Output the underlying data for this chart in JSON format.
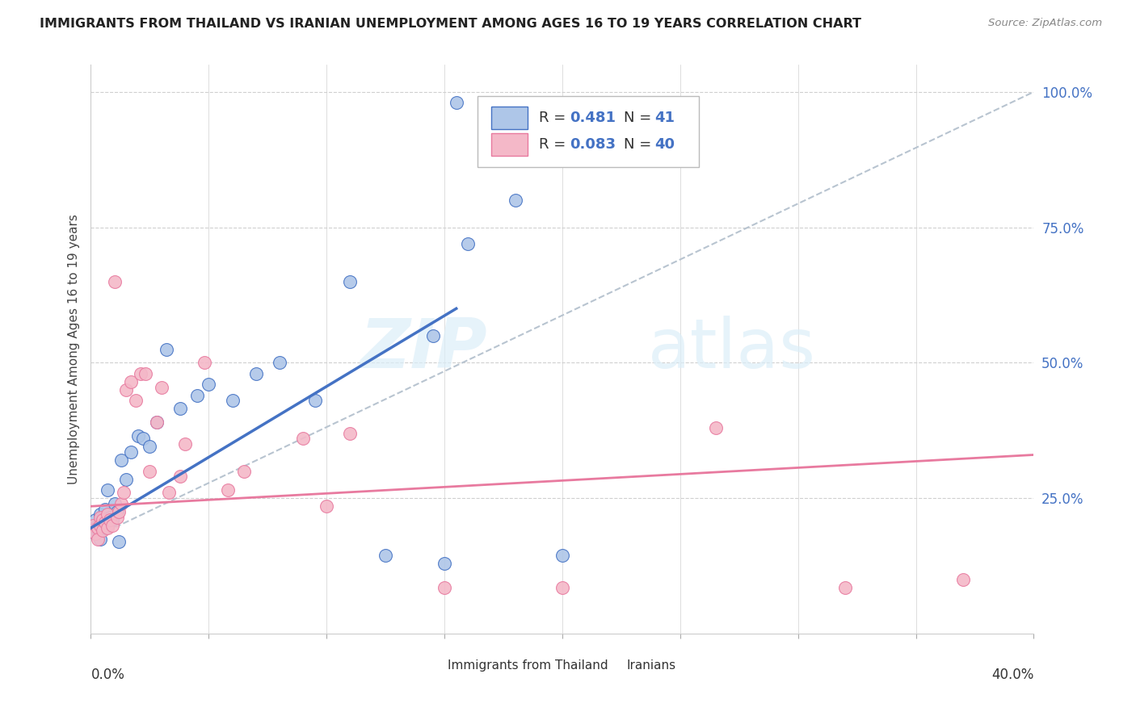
{
  "title": "IMMIGRANTS FROM THAILAND VS IRANIAN UNEMPLOYMENT AMONG AGES 16 TO 19 YEARS CORRELATION CHART",
  "source": "Source: ZipAtlas.com",
  "ylabel": "Unemployment Among Ages 16 to 19 years",
  "xlim": [
    0.0,
    0.4
  ],
  "ylim": [
    0.0,
    1.05
  ],
  "blue_color": "#aec6e8",
  "pink_color": "#f4b8c8",
  "line_blue": "#4472c4",
  "line_pink": "#e87a9f",
  "diag_color": "#b8c4d0",
  "watermark_zip": "ZIP",
  "watermark_atlas": "atlas",
  "thailand_points": [
    [
      0.001,
      0.195
    ],
    [
      0.002,
      0.185
    ],
    [
      0.002,
      0.21
    ],
    [
      0.003,
      0.2
    ],
    [
      0.003,
      0.19
    ],
    [
      0.004,
      0.22
    ],
    [
      0.004,
      0.175
    ],
    [
      0.005,
      0.205
    ],
    [
      0.005,
      0.215
    ],
    [
      0.006,
      0.195
    ],
    [
      0.006,
      0.23
    ],
    [
      0.007,
      0.2
    ],
    [
      0.007,
      0.265
    ],
    [
      0.008,
      0.215
    ],
    [
      0.009,
      0.21
    ],
    [
      0.01,
      0.24
    ],
    [
      0.011,
      0.225
    ],
    [
      0.012,
      0.17
    ],
    [
      0.013,
      0.32
    ],
    [
      0.015,
      0.285
    ],
    [
      0.017,
      0.335
    ],
    [
      0.02,
      0.365
    ],
    [
      0.022,
      0.36
    ],
    [
      0.025,
      0.345
    ],
    [
      0.028,
      0.39
    ],
    [
      0.032,
      0.525
    ],
    [
      0.038,
      0.415
    ],
    [
      0.045,
      0.44
    ],
    [
      0.05,
      0.46
    ],
    [
      0.06,
      0.43
    ],
    [
      0.07,
      0.48
    ],
    [
      0.08,
      0.5
    ],
    [
      0.095,
      0.43
    ],
    [
      0.11,
      0.65
    ],
    [
      0.125,
      0.145
    ],
    [
      0.15,
      0.13
    ],
    [
      0.16,
      0.72
    ],
    [
      0.18,
      0.8
    ],
    [
      0.2,
      0.145
    ],
    [
      0.155,
      0.98
    ],
    [
      0.145,
      0.55
    ]
  ],
  "iranian_points": [
    [
      0.001,
      0.2
    ],
    [
      0.002,
      0.185
    ],
    [
      0.003,
      0.195
    ],
    [
      0.003,
      0.175
    ],
    [
      0.004,
      0.215
    ],
    [
      0.004,
      0.2
    ],
    [
      0.005,
      0.21
    ],
    [
      0.005,
      0.19
    ],
    [
      0.006,
      0.205
    ],
    [
      0.007,
      0.195
    ],
    [
      0.007,
      0.22
    ],
    [
      0.008,
      0.21
    ],
    [
      0.009,
      0.2
    ],
    [
      0.01,
      0.65
    ],
    [
      0.011,
      0.215
    ],
    [
      0.012,
      0.225
    ],
    [
      0.013,
      0.24
    ],
    [
      0.014,
      0.26
    ],
    [
      0.015,
      0.45
    ],
    [
      0.017,
      0.465
    ],
    [
      0.019,
      0.43
    ],
    [
      0.021,
      0.48
    ],
    [
      0.023,
      0.48
    ],
    [
      0.025,
      0.3
    ],
    [
      0.028,
      0.39
    ],
    [
      0.03,
      0.455
    ],
    [
      0.033,
      0.26
    ],
    [
      0.038,
      0.29
    ],
    [
      0.04,
      0.35
    ],
    [
      0.048,
      0.5
    ],
    [
      0.058,
      0.265
    ],
    [
      0.065,
      0.3
    ],
    [
      0.09,
      0.36
    ],
    [
      0.1,
      0.235
    ],
    [
      0.11,
      0.37
    ],
    [
      0.15,
      0.085
    ],
    [
      0.2,
      0.085
    ],
    [
      0.265,
      0.38
    ],
    [
      0.32,
      0.085
    ],
    [
      0.37,
      0.1
    ]
  ],
  "blue_line_x": [
    0.0,
    0.155
  ],
  "blue_line_y": [
    0.195,
    0.6
  ],
  "pink_line_x": [
    0.0,
    0.4
  ],
  "pink_line_y": [
    0.235,
    0.33
  ],
  "diag_line_x": [
    0.0,
    0.4
  ],
  "diag_line_y": [
    0.175,
    1.0
  ],
  "right_yticks": [
    0.0,
    0.25,
    0.5,
    0.75,
    1.0
  ],
  "right_yticklabels": [
    "",
    "25.0%",
    "50.0%",
    "75.0%",
    "100.0%"
  ],
  "legend_r1": "0.481",
  "legend_n1": "41",
  "legend_r2": "0.083",
  "legend_n2": "40"
}
